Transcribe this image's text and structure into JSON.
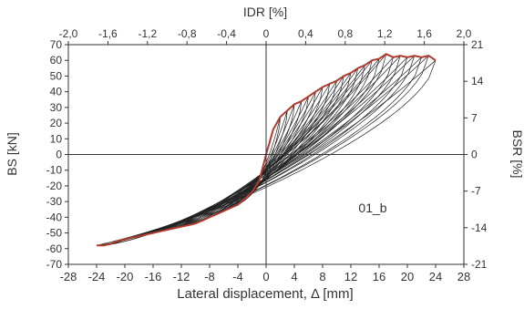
{
  "chart_data": {
    "type": "line",
    "xlabel": "Lateral displacement, Δ [mm]",
    "ylabel": "BS [kN]",
    "x2label": "IDR [%]",
    "y2label": "BSR [%]",
    "xlim": [
      -28,
      28
    ],
    "ylim": [
      -70,
      70
    ],
    "x2lim": [
      -2.0,
      2.0
    ],
    "y2lim": [
      -21,
      21
    ],
    "xticks": [
      "-28",
      "-24",
      "-20",
      "-16",
      "-12",
      "-8",
      "-4",
      "0",
      "4",
      "8",
      "12",
      "16",
      "20",
      "24",
      "28"
    ],
    "yticks": [
      "-70",
      "-60",
      "-50",
      "-40",
      "-30",
      "-20",
      "-10",
      "0",
      "10",
      "20",
      "30",
      "40",
      "50",
      "60",
      "70"
    ],
    "x2ticks": [
      "-2,0",
      "-1,6",
      "-1,2",
      "-0,8",
      "-0,4",
      "0",
      "0,4",
      "0,8",
      "1,2",
      "1,6",
      "2,0"
    ],
    "y2ticks": [
      "-21",
      "-14",
      "-7",
      "0",
      "7",
      "14",
      "21"
    ],
    "annotation": "01_b",
    "grid": false,
    "zero_lines": true,
    "cycle_amplitudes_mm": [
      2,
      3,
      4,
      5,
      6,
      7,
      8,
      9,
      10,
      11,
      12,
      13,
      14,
      15,
      16,
      17,
      18,
      19,
      20,
      21,
      22,
      23,
      24
    ],
    "series": [
      {
        "role": "positive-envelope",
        "color": "#b03a2e",
        "points": [
          [
            0,
            0
          ],
          [
            1,
            16
          ],
          [
            2,
            24
          ],
          [
            3,
            28
          ],
          [
            4,
            32
          ],
          [
            5,
            34
          ],
          [
            6,
            37
          ],
          [
            7,
            40
          ],
          [
            8,
            43
          ],
          [
            9,
            45
          ],
          [
            10,
            47
          ],
          [
            11,
            50
          ],
          [
            12,
            52
          ],
          [
            13,
            55
          ],
          [
            14,
            57
          ],
          [
            15,
            60
          ],
          [
            16,
            61
          ],
          [
            17,
            64
          ],
          [
            18,
            62
          ],
          [
            19,
            63
          ],
          [
            20,
            62
          ],
          [
            21,
            63
          ],
          [
            22,
            62
          ],
          [
            23,
            63
          ],
          [
            24,
            60
          ]
        ]
      },
      {
        "role": "negative-envelope",
        "color": "#b03a2e",
        "points": [
          [
            0,
            0
          ],
          [
            -1,
            -17
          ],
          [
            -2,
            -24
          ],
          [
            -3,
            -28
          ],
          [
            -4,
            -32
          ],
          [
            -5,
            -34
          ],
          [
            -6,
            -36
          ],
          [
            -7,
            -38
          ],
          [
            -8,
            -40
          ],
          [
            -9,
            -42
          ],
          [
            -10,
            -44
          ],
          [
            -11,
            -45
          ],
          [
            -12,
            -46
          ],
          [
            -13,
            -47
          ],
          [
            -14,
            -48
          ],
          [
            -15,
            -49
          ],
          [
            -16,
            -50
          ],
          [
            -17,
            -51
          ],
          [
            -18,
            -52
          ],
          [
            -19,
            -53
          ],
          [
            -20,
            -54
          ],
          [
            -21,
            -55
          ],
          [
            -22,
            -57
          ],
          [
            -23,
            -58
          ],
          [
            -24,
            -58
          ]
        ]
      }
    ]
  }
}
